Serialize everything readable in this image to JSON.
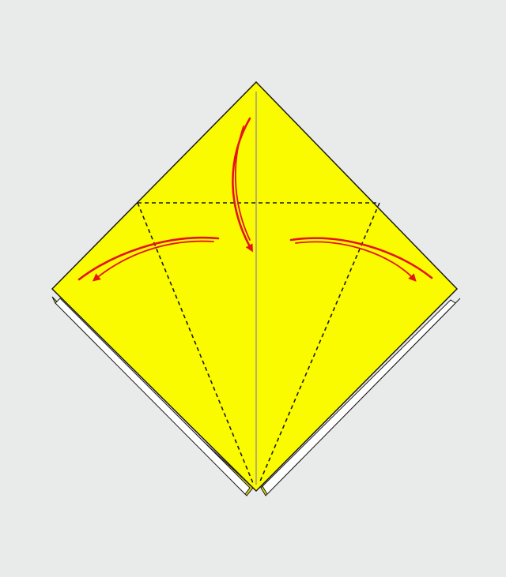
{
  "diagram": {
    "kind": "origami-fold-step",
    "colors": {
      "background": "#e9ebea",
      "paper_front": "#fbfb00",
      "paper_back_layer": "#d6d21e",
      "paper_edge": "#1a1a1a",
      "crease_line": "#b9b06a",
      "fold_line": "#1a1a1a",
      "arrow": "#e3141b",
      "white_layer": "#ffffff"
    },
    "elements": {
      "square": "yellow-square-diamond",
      "back_layers": "underlying-layers",
      "center_crease": "vertical-valley-crease",
      "fold_lines": "dashed-valley-folds",
      "arrows": [
        "top-flap-down-arrow",
        "left-flap-arrow",
        "right-flap-arrow"
      ]
    }
  }
}
